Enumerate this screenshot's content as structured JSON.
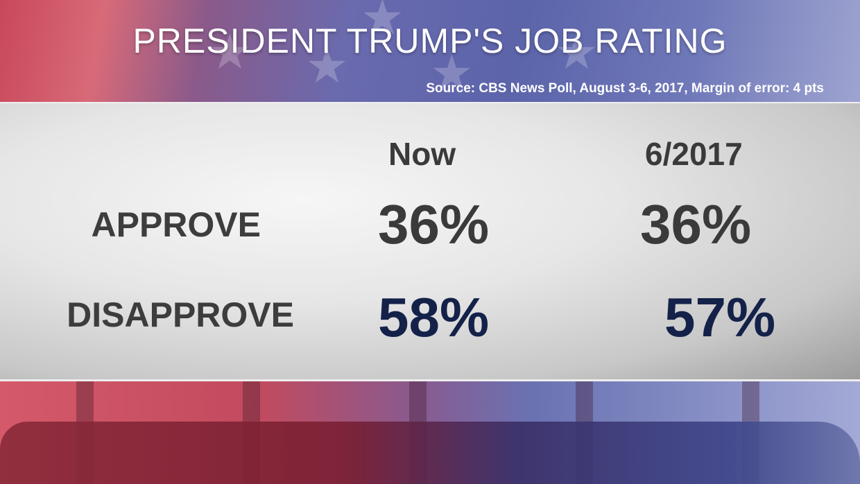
{
  "chart_data": {
    "type": "table",
    "title": "PRESIDENT TRUMP'S JOB RATING",
    "source": "Source: CBS News Poll, August 3-6, 2017, Margin of error: 4 pts",
    "columns": [
      "Now",
      "6/2017"
    ],
    "rows": [
      {
        "label": "APPROVE",
        "values": [
          "36%",
          "36%"
        ],
        "color": "#3a3a3a"
      },
      {
        "label": "DISAPPROVE",
        "values": [
          "58%",
          "57%"
        ],
        "color": "#14224a"
      }
    ]
  },
  "colors": {
    "red": "#c8485a",
    "blue": "#5c64aa",
    "panel": "#e6e6e6",
    "approve_text": "#3a3a3a",
    "disapprove_text": "#14224a"
  }
}
